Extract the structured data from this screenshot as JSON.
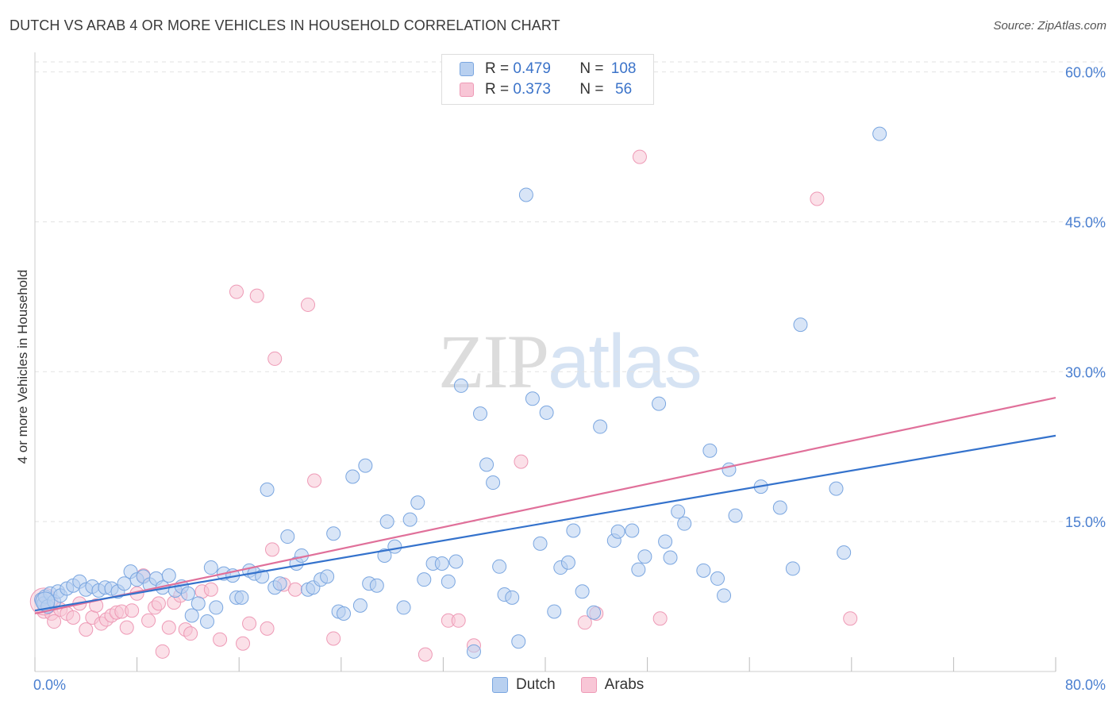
{
  "title": "DUTCH VS ARAB 4 OR MORE VEHICLES IN HOUSEHOLD CORRELATION CHART",
  "source": "Source: ZipAtlas.com",
  "watermark": {
    "zip": "ZIP",
    "atlas": "atlas"
  },
  "legend": {
    "rows": [
      {
        "r_label": "R = ",
        "r_value": "0.479",
        "n_label": "N = ",
        "n_value": "108"
      },
      {
        "r_label": "R = ",
        "r_value": "0.373",
        "n_label": "N = ",
        "n_value": " 56"
      }
    ]
  },
  "bottom_legend": [
    {
      "label": "Dutch"
    },
    {
      "label": "Arabs"
    }
  ],
  "colors": {
    "dutch_fill": "#b8d0f0",
    "dutch_stroke": "#7aa6e0",
    "dutch_line": "#3472cc",
    "arabs_fill": "#f8c6d6",
    "arabs_stroke": "#ee9ab6",
    "arabs_line": "#e0709a",
    "grid": "#e2e2e2",
    "tick_text": "#4a7fd0"
  },
  "chart_data": {
    "type": "scatter",
    "title": "DUTCH VS ARAB 4 OR MORE VEHICLES IN HOUSEHOLD CORRELATION CHART",
    "xlabel": "",
    "ylabel": "4 or more Vehicles in Household",
    "xlim": [
      0,
      80
    ],
    "ylim": [
      0,
      61
    ],
    "x_tick_labels": [
      "0.0%",
      "80.0%"
    ],
    "y_ticks": [
      15,
      30,
      45,
      60
    ],
    "y_tick_labels": [
      "15.0%",
      "30.0%",
      "45.0%",
      "60.0%"
    ],
    "grid": true,
    "legend_position": "top-center",
    "series": [
      {
        "name": "Dutch",
        "r": 0.479,
        "n": 108,
        "trend": {
          "x": [
            0,
            80
          ],
          "y": [
            6.1,
            23.6
          ]
        },
        "points": [
          [
            0.5,
            7.2
          ],
          [
            0.7,
            6.8
          ],
          [
            0.8,
            7.5
          ],
          [
            1.0,
            6.5
          ],
          [
            1.2,
            7.8
          ],
          [
            1.5,
            7.0
          ],
          [
            1.8,
            8.0
          ],
          [
            2.0,
            7.6
          ],
          [
            2.5,
            8.3
          ],
          [
            3.0,
            8.6
          ],
          [
            3.5,
            9.0
          ],
          [
            4.0,
            8.2
          ],
          [
            4.5,
            8.5
          ],
          [
            5.0,
            8.1
          ],
          [
            5.5,
            8.4
          ],
          [
            6.0,
            8.3
          ],
          [
            6.5,
            8.0
          ],
          [
            7.0,
            8.8
          ],
          [
            7.5,
            10.0
          ],
          [
            8.0,
            9.2
          ],
          [
            8.5,
            9.5
          ],
          [
            9.0,
            8.7
          ],
          [
            9.5,
            9.3
          ],
          [
            10.0,
            8.4
          ],
          [
            10.5,
            9.6
          ],
          [
            11.0,
            8.1
          ],
          [
            11.5,
            8.5
          ],
          [
            12.0,
            7.8
          ],
          [
            12.3,
            5.6
          ],
          [
            12.8,
            6.8
          ],
          [
            13.5,
            5.0
          ],
          [
            13.8,
            10.4
          ],
          [
            14.2,
            6.4
          ],
          [
            14.8,
            9.8
          ],
          [
            15.5,
            9.6
          ],
          [
            15.8,
            7.4
          ],
          [
            16.2,
            7.4
          ],
          [
            16.8,
            10.1
          ],
          [
            17.2,
            9.8
          ],
          [
            17.8,
            9.5
          ],
          [
            18.2,
            18.2
          ],
          [
            18.8,
            8.4
          ],
          [
            19.2,
            8.8
          ],
          [
            19.8,
            13.5
          ],
          [
            20.5,
            10.8
          ],
          [
            20.9,
            11.6
          ],
          [
            21.4,
            8.2
          ],
          [
            21.8,
            8.4
          ],
          [
            22.4,
            9.2
          ],
          [
            22.9,
            9.5
          ],
          [
            23.4,
            13.8
          ],
          [
            23.8,
            6.0
          ],
          [
            24.2,
            5.8
          ],
          [
            24.9,
            19.5
          ],
          [
            25.5,
            6.6
          ],
          [
            25.9,
            20.6
          ],
          [
            26.2,
            8.8
          ],
          [
            26.8,
            8.6
          ],
          [
            27.4,
            11.6
          ],
          [
            27.6,
            15.0
          ],
          [
            28.2,
            12.5
          ],
          [
            28.9,
            6.4
          ],
          [
            29.4,
            15.2
          ],
          [
            30.0,
            16.9
          ],
          [
            30.5,
            9.2
          ],
          [
            31.2,
            10.8
          ],
          [
            31.9,
            10.8
          ],
          [
            32.4,
            9.0
          ],
          [
            33.0,
            11.0
          ],
          [
            33.4,
            28.6
          ],
          [
            34.4,
            2.0
          ],
          [
            34.9,
            25.8
          ],
          [
            35.4,
            20.7
          ],
          [
            35.9,
            18.9
          ],
          [
            36.4,
            10.5
          ],
          [
            36.8,
            7.7
          ],
          [
            37.4,
            7.4
          ],
          [
            37.9,
            3.0
          ],
          [
            38.5,
            47.7
          ],
          [
            39.0,
            27.3
          ],
          [
            39.6,
            12.8
          ],
          [
            40.1,
            25.9
          ],
          [
            40.7,
            6.0
          ],
          [
            41.2,
            10.4
          ],
          [
            41.8,
            10.9
          ],
          [
            42.2,
            14.1
          ],
          [
            42.9,
            8.0
          ],
          [
            43.8,
            5.9
          ],
          [
            44.3,
            24.5
          ],
          [
            45.4,
            13.1
          ],
          [
            45.7,
            14.0
          ],
          [
            46.8,
            14.1
          ],
          [
            47.3,
            10.2
          ],
          [
            47.8,
            11.5
          ],
          [
            48.9,
            26.8
          ],
          [
            49.4,
            13.0
          ],
          [
            49.8,
            11.4
          ],
          [
            50.4,
            16.0
          ],
          [
            50.9,
            14.8
          ],
          [
            52.4,
            10.1
          ],
          [
            52.9,
            22.1
          ],
          [
            53.5,
            9.3
          ],
          [
            54.0,
            7.6
          ],
          [
            54.4,
            20.2
          ],
          [
            54.9,
            15.6
          ],
          [
            56.9,
            18.5
          ],
          [
            58.4,
            16.4
          ],
          [
            59.4,
            10.3
          ],
          [
            60.0,
            34.7
          ],
          [
            62.8,
            18.3
          ],
          [
            63.4,
            11.9
          ],
          [
            66.2,
            53.8
          ]
        ]
      },
      {
        "name": "Arabs",
        "r": 0.373,
        "n": 56,
        "trend": {
          "x": [
            0,
            80
          ],
          "y": [
            5.8,
            27.4
          ]
        },
        "points": [
          [
            0.5,
            7.2
          ],
          [
            0.7,
            6.0
          ],
          [
            1.0,
            6.5
          ],
          [
            1.3,
            5.8
          ],
          [
            1.5,
            5.0
          ],
          [
            2.0,
            6.2
          ],
          [
            2.5,
            5.8
          ],
          [
            3.0,
            5.4
          ],
          [
            3.5,
            6.8
          ],
          [
            4.0,
            4.2
          ],
          [
            4.5,
            5.4
          ],
          [
            4.8,
            6.6
          ],
          [
            5.2,
            4.8
          ],
          [
            5.6,
            5.2
          ],
          [
            6.0,
            5.6
          ],
          [
            6.4,
            5.9
          ],
          [
            6.8,
            6.0
          ],
          [
            7.2,
            4.4
          ],
          [
            7.6,
            6.1
          ],
          [
            8.0,
            7.8
          ],
          [
            8.5,
            9.6
          ],
          [
            8.9,
            5.1
          ],
          [
            9.4,
            6.4
          ],
          [
            9.7,
            6.8
          ],
          [
            10.0,
            2.0
          ],
          [
            10.5,
            4.4
          ],
          [
            10.9,
            6.9
          ],
          [
            11.4,
            7.6
          ],
          [
            11.8,
            4.2
          ],
          [
            12.2,
            3.8
          ],
          [
            13.1,
            8.0
          ],
          [
            13.8,
            8.2
          ],
          [
            14.5,
            3.2
          ],
          [
            15.8,
            38.0
          ],
          [
            16.3,
            2.8
          ],
          [
            16.8,
            4.8
          ],
          [
            17.4,
            37.6
          ],
          [
            18.2,
            4.3
          ],
          [
            18.6,
            12.2
          ],
          [
            18.8,
            31.3
          ],
          [
            19.5,
            8.7
          ],
          [
            20.4,
            8.2
          ],
          [
            21.4,
            36.7
          ],
          [
            21.9,
            19.1
          ],
          [
            23.4,
            3.3
          ],
          [
            30.6,
            1.7
          ],
          [
            32.4,
            5.1
          ],
          [
            33.2,
            5.1
          ],
          [
            34.4,
            2.6
          ],
          [
            38.1,
            21.0
          ],
          [
            43.1,
            4.9
          ],
          [
            44.0,
            5.8
          ],
          [
            47.4,
            51.5
          ],
          [
            49.0,
            5.3
          ],
          [
            61.3,
            47.3
          ],
          [
            63.9,
            5.3
          ]
        ]
      }
    ]
  }
}
